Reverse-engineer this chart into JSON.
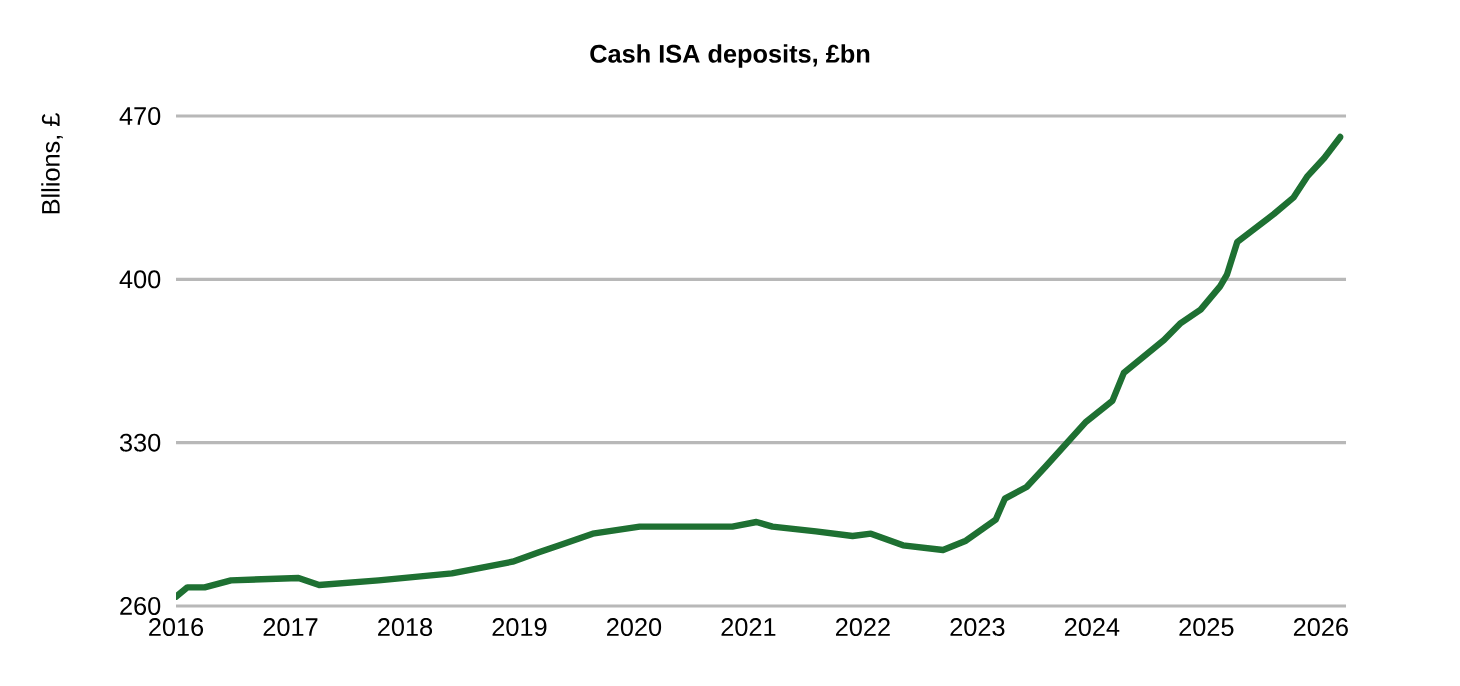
{
  "chart_data": {
    "type": "line",
    "title": "Cash ISA deposits, £bn",
    "ylabel": "Bllions, £",
    "x": [
      2016.0,
      2016.1,
      2016.25,
      2016.48,
      2017.07,
      2017.25,
      2017.77,
      2018.41,
      2018.94,
      2019.17,
      2019.35,
      2019.64,
      2020.05,
      2020.51,
      2020.86,
      2021.07,
      2021.21,
      2021.59,
      2021.91,
      2022.07,
      2022.35,
      2022.7,
      2022.9,
      2023.16,
      2023.24,
      2023.43,
      2023.6,
      2023.95,
      2024.18,
      2024.28,
      2024.63,
      2024.77,
      2024.95,
      2025.12,
      2025.18,
      2025.27,
      2025.59,
      2025.76,
      2025.88,
      2026.03,
      2026.17
    ],
    "series": [
      {
        "color": "#1e7032",
        "values": [
          264,
          268,
          268,
          271,
          272,
          269,
          271,
          274,
          279,
          283,
          286,
          291,
          294,
          294,
          294,
          296,
          294,
          292,
          290,
          291,
          286,
          284,
          288,
          297,
          306,
          311,
          320,
          339,
          348,
          360,
          374,
          381,
          387,
          397,
          402,
          416,
          428,
          435,
          444,
          452,
          461
        ]
      }
    ],
    "xlim": [
      2016,
      2026.22
    ],
    "xticks": [
      2016,
      2017,
      2018,
      2019,
      2020,
      2021,
      2022,
      2023,
      2024,
      2025,
      2026
    ],
    "ylim": [
      260,
      470
    ],
    "yticks": [
      260,
      330,
      400,
      470
    ],
    "grid": "y",
    "marker": "none",
    "line_style": "solid"
  }
}
